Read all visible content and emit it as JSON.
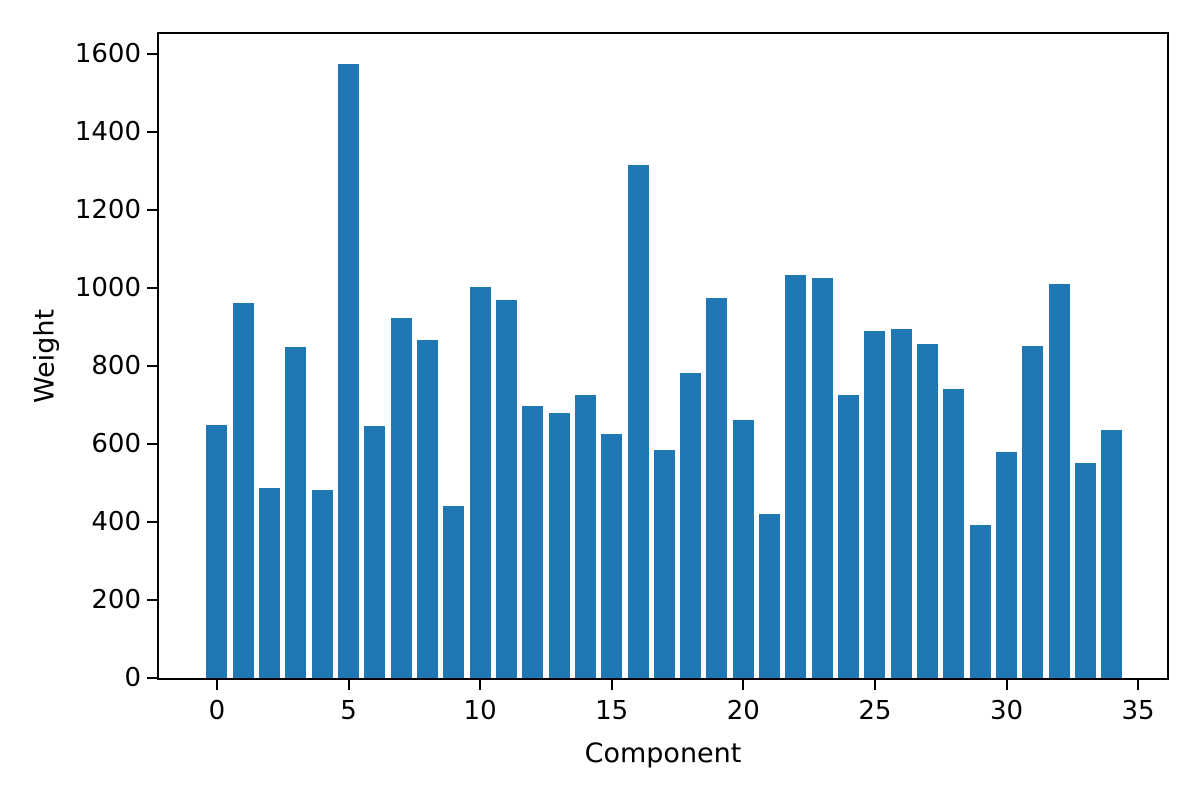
{
  "chart_data": {
    "type": "bar",
    "title": "",
    "xlabel": "Component",
    "ylabel": "Weight",
    "x": [
      0,
      1,
      2,
      3,
      4,
      5,
      6,
      7,
      8,
      9,
      10,
      11,
      12,
      13,
      14,
      15,
      16,
      17,
      18,
      19,
      20,
      21,
      22,
      23,
      24,
      25,
      26,
      27,
      28,
      29,
      30,
      31,
      32,
      33,
      34
    ],
    "values": [
      649,
      962,
      486,
      847,
      483,
      1572,
      646,
      923,
      865,
      440,
      1002,
      969,
      697,
      679,
      725,
      626,
      1315,
      585,
      781,
      974,
      661,
      420,
      1033,
      1025,
      725,
      888,
      895,
      855,
      740,
      392,
      580,
      852,
      1010,
      552,
      636
    ],
    "bar_color": "#1f77b4",
    "bar_width": 0.8,
    "xlim": [
      -2.2,
      36.1
    ],
    "ylim": [
      0,
      1650
    ],
    "xticks": [
      0,
      5,
      10,
      15,
      20,
      25,
      30,
      35
    ],
    "yticks": [
      0,
      200,
      400,
      600,
      800,
      1000,
      1200,
      1400,
      1600
    ],
    "grid": false,
    "legend_position": "none",
    "axis_color": "#000000",
    "background": "#ffffff"
  }
}
